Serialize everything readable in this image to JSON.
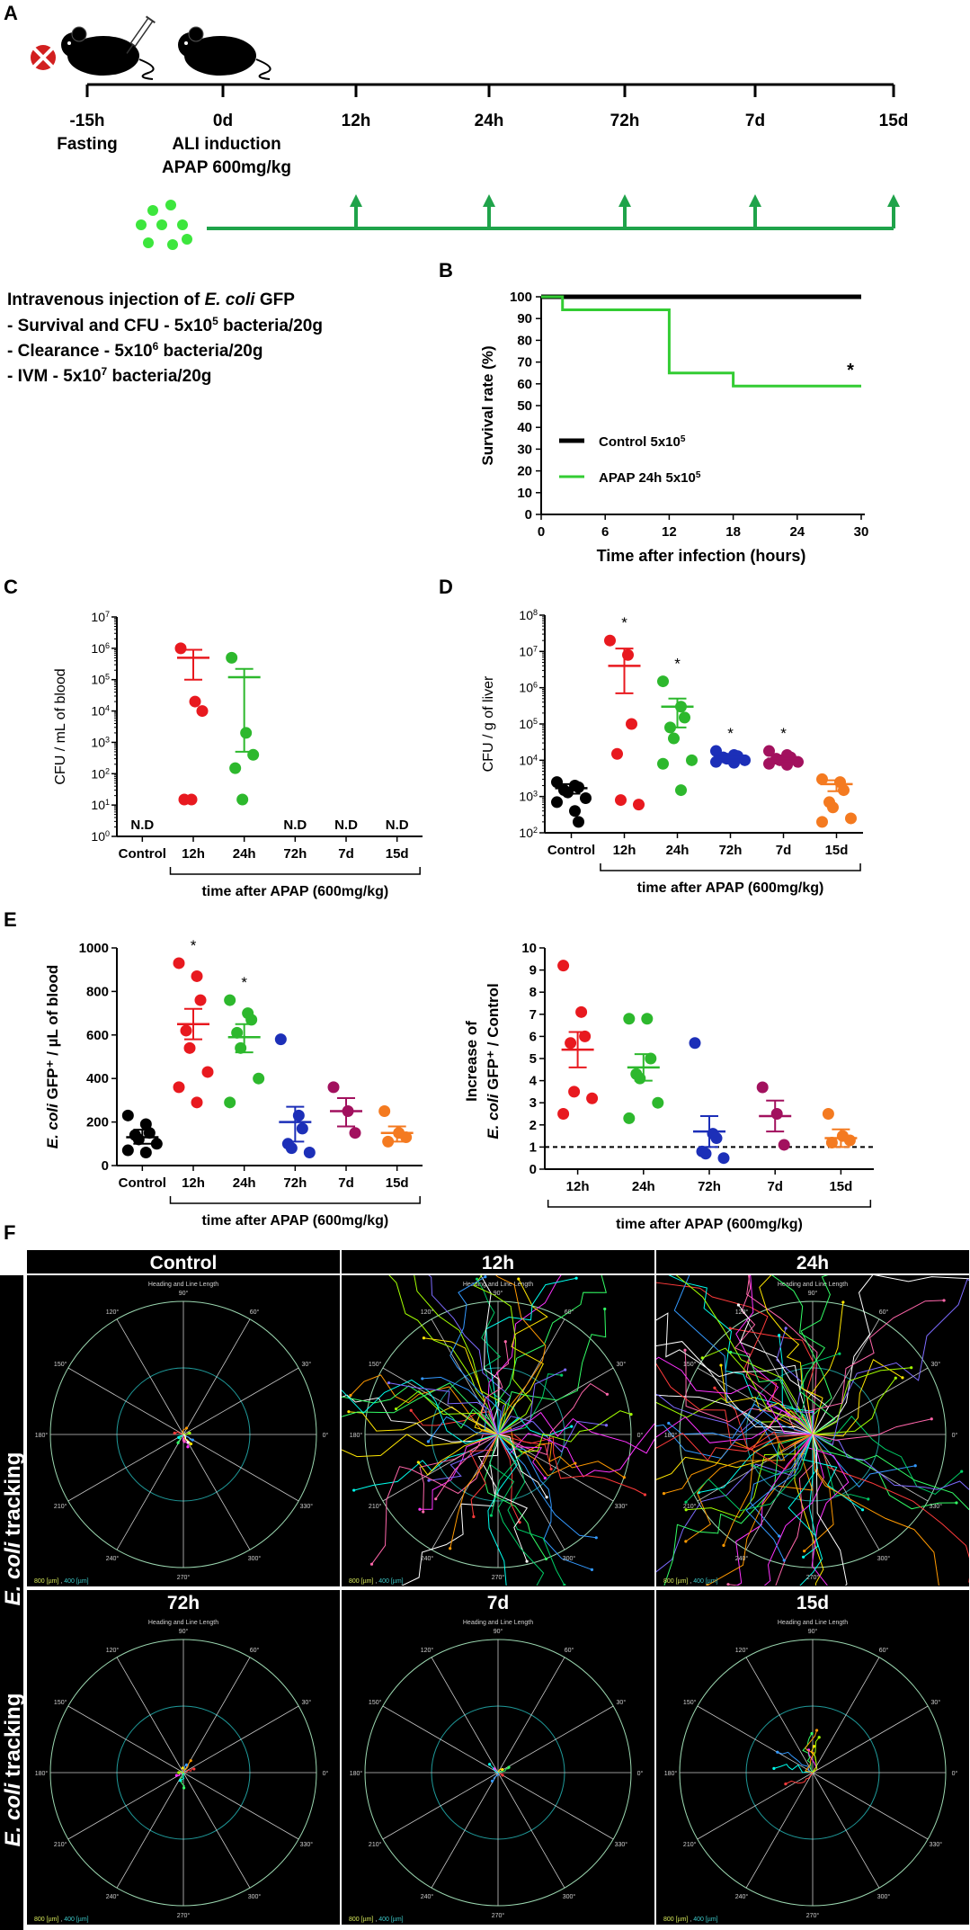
{
  "panelA": {
    "label": "A",
    "timeline": [
      {
        "label": "-15h",
        "sub": "Fasting"
      },
      {
        "label": "0d",
        "sub1": "ALI induction",
        "sub2": "APAP 600mg/kg"
      },
      {
        "label": "12h"
      },
      {
        "label": "24h"
      },
      {
        "label": "72h"
      },
      {
        "label": "7d"
      },
      {
        "label": "15d"
      }
    ],
    "injection_title_prefix": "Intravenous injection of ",
    "injection_title_species": "E. coli",
    "injection_title_suffix": " GFP",
    "protocols": [
      {
        "label": "- Survival and CFU - 5x10",
        "exp": "5",
        "rest": " bacteria/20g"
      },
      {
        "label": "- Clearance - 5x10",
        "exp": "6",
        "rest": " bacteria/20g"
      },
      {
        "label": "- IVM - 5x10",
        "exp": "7",
        "rest": " bacteria/20g"
      }
    ]
  },
  "chart_data": [
    {
      "id": "B",
      "type": "line",
      "title": "",
      "xlabel": "Time after infection  (hours)",
      "ylabel": "Survival rate (%)",
      "xlim": [
        0,
        30
      ],
      "ylim": [
        0,
        100
      ],
      "xticks": [
        "0",
        "6",
        "12",
        "18",
        "24",
        "30"
      ],
      "yticks": [
        "0",
        "10",
        "20",
        "30",
        "40",
        "50",
        "60",
        "70",
        "80",
        "90",
        "100"
      ],
      "series": [
        {
          "name": "Control 5x10",
          "exp": "5",
          "color": "#000000",
          "x": [
            0,
            30
          ],
          "y": [
            100,
            100
          ]
        },
        {
          "name": "APAP 24h 5x10",
          "exp": "5",
          "color": "#33cc33",
          "x": [
            0,
            2,
            2,
            12,
            12,
            18,
            18,
            30
          ],
          "y": [
            100,
            100,
            94,
            94,
            65,
            65,
            59,
            59
          ]
        }
      ],
      "annotation": "*"
    },
    {
      "id": "C",
      "type": "scatter",
      "ylabel": "CFU / mL of blood",
      "yscale": "log",
      "ylim": [
        1,
        10000000
      ],
      "categories": [
        "Control",
        "12h",
        "24h",
        "72h",
        "7d",
        "15d"
      ],
      "nd_label": "N.D",
      "nd_groups": [
        "Control",
        "72h",
        "7d",
        "15d"
      ],
      "group_label": "time after APAP (600mg/kg)",
      "groups": [
        {
          "cat": "12h",
          "color": "#e8191f",
          "points": [
            1000000,
            20000,
            10000,
            15,
            15
          ],
          "mean": 500000,
          "err": [
            100000,
            900000
          ]
        },
        {
          "cat": "24h",
          "color": "#2db82d",
          "points": [
            500000,
            2000,
            400,
            150,
            15
          ],
          "mean": 120000,
          "err": [
            500,
            220000
          ]
        }
      ]
    },
    {
      "id": "D",
      "type": "scatter",
      "ylabel": "CFU / g of liver",
      "yscale": "log",
      "ylim": [
        100,
        100000000
      ],
      "categories": [
        "Control",
        "12h",
        "24h",
        "72h",
        "7d",
        "15d"
      ],
      "group_label": "time after APAP (600mg/kg)",
      "groups": [
        {
          "cat": "Control",
          "color": "#000000",
          "points": [
            2500,
            2000,
            1800,
            1500,
            1300,
            900,
            700,
            400,
            200
          ],
          "mean": 1700,
          "err": [
            1200,
            2200
          ],
          "star": false
        },
        {
          "cat": "12h",
          "color": "#e8191f",
          "points": [
            20000000,
            8000000,
            100000,
            15000,
            800,
            600
          ],
          "mean": 4000000,
          "err": [
            700000,
            12000000
          ],
          "star": true
        },
        {
          "cat": "24h",
          "color": "#2db82d",
          "points": [
            1500000,
            300000,
            150000,
            80000,
            40000,
            10000,
            8000,
            1500
          ],
          "mean": 300000,
          "err": [
            80000,
            500000
          ],
          "star": true
        },
        {
          "cat": "72h",
          "color": "#1c2fb8",
          "points": [
            18000,
            14000,
            13000,
            12000,
            11000,
            10000,
            9000,
            8500
          ],
          "mean": 12000,
          "err": [
            10000,
            14000
          ],
          "star": true
        },
        {
          "cat": "7d",
          "color": "#a2115e",
          "points": [
            18000,
            14000,
            12000,
            11000,
            10000,
            9000,
            8000,
            7500
          ],
          "mean": 11000,
          "err": [
            9500,
            13000
          ],
          "star": true
        },
        {
          "cat": "15d",
          "color": "#f47a20",
          "points": [
            3000,
            2500,
            1500,
            700,
            500,
            250,
            200
          ],
          "mean": 2200,
          "err": [
            1400,
            2800
          ],
          "star": false
        }
      ]
    },
    {
      "id": "E1",
      "type": "scatter",
      "ylabel": "GFP⁺ / µL of blood",
      "ylabel_species": "E. coli",
      "ylim": [
        0,
        1000
      ],
      "yticks": [
        "0",
        "200",
        "400",
        "600",
        "800",
        "1000"
      ],
      "categories": [
        "Control",
        "12h",
        "24h",
        "72h",
        "7d",
        "15d"
      ],
      "group_label": "time after APAP (600mg/kg)",
      "groups": [
        {
          "cat": "Control",
          "color": "#000000",
          "points": [
            230,
            190,
            150,
            140,
            120,
            100,
            70,
            60
          ],
          "mean": 130,
          "err": [
            100,
            165
          ],
          "star": false
        },
        {
          "cat": "12h",
          "color": "#e8191f",
          "points": [
            930,
            870,
            760,
            620,
            540,
            430,
            360,
            290
          ],
          "mean": 650,
          "err": [
            580,
            720
          ],
          "star": true
        },
        {
          "cat": "24h",
          "color": "#2db82d",
          "points": [
            760,
            700,
            670,
            610,
            540,
            400,
            290
          ],
          "mean": 590,
          "err": [
            520,
            650
          ],
          "star": true
        },
        {
          "cat": "72h",
          "color": "#1c2fb8",
          "points": [
            580,
            230,
            170,
            100,
            80,
            60
          ],
          "mean": 200,
          "err": [
            110,
            270
          ],
          "star": false
        },
        {
          "cat": "7d",
          "color": "#a2115e",
          "points": [
            360,
            250,
            150
          ],
          "mean": 250,
          "err": [
            180,
            310
          ],
          "star": false
        },
        {
          "cat": "15d",
          "color": "#f47a20",
          "points": [
            250,
            150,
            130,
            110
          ],
          "mean": 150,
          "err": [
            110,
            180
          ],
          "star": false
        }
      ]
    },
    {
      "id": "E2",
      "type": "scatter",
      "ylabel": "Increase of",
      "ylabel2_species": "E. coli",
      "ylabel2_rest": " GFP⁺ / Control",
      "ylim": [
        0,
        10
      ],
      "yticks": [
        "0",
        "1",
        "2",
        "3",
        "4",
        "5",
        "6",
        "7",
        "8",
        "9",
        "10"
      ],
      "categories": [
        "12h",
        "24h",
        "72h",
        "7d",
        "15d"
      ],
      "reference_line": 1,
      "group_label": "time after APAP (600mg/kg)",
      "groups": [
        {
          "cat": "12h",
          "color": "#e8191f",
          "points": [
            9.2,
            7.1,
            6.0,
            5.7,
            3.5,
            3.2,
            2.5
          ],
          "mean": 5.4,
          "err": [
            4.6,
            6.2
          ]
        },
        {
          "cat": "24h",
          "color": "#2db82d",
          "points": [
            6.8,
            6.8,
            5.0,
            4.3,
            4.1,
            3.0,
            2.3
          ],
          "mean": 4.6,
          "err": [
            4.0,
            5.2
          ]
        },
        {
          "cat": "72h",
          "color": "#1c2fb8",
          "points": [
            5.7,
            1.6,
            1.4,
            0.8,
            0.7,
            0.5
          ],
          "mean": 1.7,
          "err": [
            1.0,
            2.4
          ]
        },
        {
          "cat": "7d",
          "color": "#a2115e",
          "points": [
            3.7,
            2.5,
            1.1
          ],
          "mean": 2.4,
          "err": [
            1.7,
            3.1
          ]
        },
        {
          "cat": "15d",
          "color": "#f47a20",
          "points": [
            2.5,
            1.5,
            1.3,
            1.2
          ],
          "mean": 1.4,
          "err": [
            1.0,
            1.8
          ]
        }
      ]
    }
  ],
  "panelF": {
    "label": "F",
    "side_label_species": "E. coli",
    "side_label_rest": " tracking",
    "plot_title": "Heading and Line Length",
    "scale_outer": "800 [µm]",
    "scale_inner": "400 [µm]",
    "angles": [
      "90°",
      "60°",
      "30°",
      "0°",
      "330°",
      "300°",
      "270°",
      "240°",
      "210°",
      "180°",
      "150°",
      "120°"
    ],
    "tiles": [
      {
        "title": "Control",
        "spread": 0.04,
        "n": 10
      },
      {
        "title": "12h",
        "spread": 0.55,
        "n": 60
      },
      {
        "title": "24h",
        "spread": 0.7,
        "n": 70
      },
      {
        "title": "72h",
        "spread": 0.04,
        "n": 8
      },
      {
        "title": "7d",
        "spread": 0.03,
        "n": 6
      },
      {
        "title": "15d",
        "spread": 0.12,
        "n": 8
      }
    ]
  },
  "labels": {
    "A": "A",
    "B": "B",
    "C": "C",
    "D": "D",
    "E": "E",
    "F": "F"
  },
  "star": "*"
}
